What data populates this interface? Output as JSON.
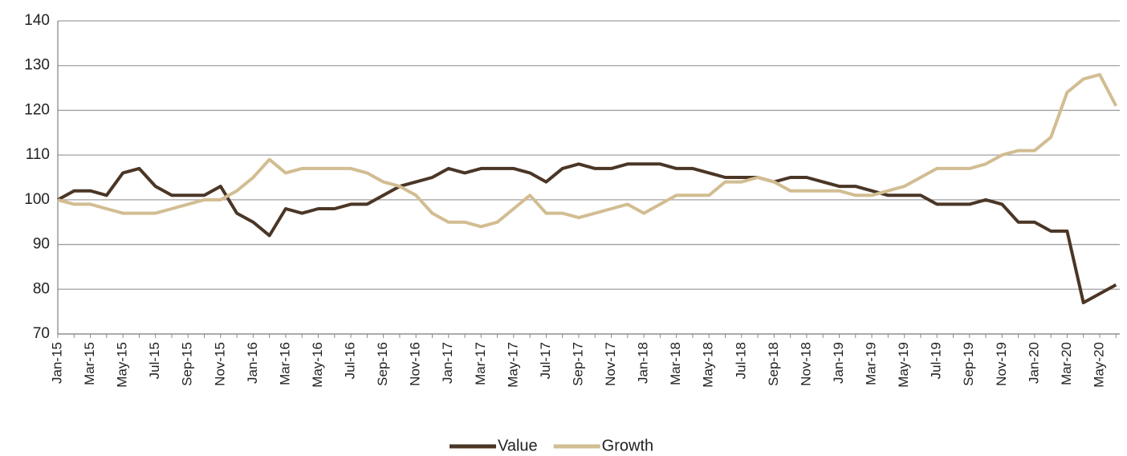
{
  "chart_data": {
    "type": "line",
    "categories": [
      "Jan-15",
      null,
      "Mar-15",
      null,
      "May-15",
      null,
      "Jul-15",
      null,
      "Sep-15",
      null,
      "Nov-15",
      null,
      "Jan-16",
      null,
      "Mar-16",
      null,
      "May-16",
      null,
      "Jul-16",
      null,
      "Sep-16",
      null,
      "Nov-16",
      null,
      "Jan-17",
      null,
      "Mar-17",
      null,
      "May-17",
      null,
      "Jul-17",
      null,
      "Sep-17",
      null,
      "Nov-17",
      null,
      "Jan-18",
      null,
      "Mar-18",
      null,
      "May-18",
      null,
      "Jul-18",
      null,
      "Sep-18",
      null,
      "Nov-18",
      null,
      "Jan-19",
      null,
      "Mar-19",
      null,
      "May-19",
      null,
      "Jul-19",
      null,
      "Sep-19",
      null,
      "Nov-19",
      null,
      "Jan-20",
      null,
      "Mar-20",
      null,
      "May-20",
      null
    ],
    "series": [
      {
        "name": "Value",
        "color": "#4b3626",
        "values": [
          100,
          102,
          102,
          101,
          106,
          107,
          103,
          101,
          101,
          101,
          103,
          97,
          95,
          92,
          98,
          97,
          98,
          98,
          99,
          99,
          101,
          103,
          104,
          105,
          107,
          106,
          107,
          107,
          107,
          106,
          104,
          107,
          108,
          107,
          107,
          108,
          108,
          108,
          107,
          107,
          106,
          105,
          105,
          105,
          104,
          105,
          105,
          104,
          103,
          103,
          102,
          101,
          101,
          101,
          99,
          99,
          99,
          100,
          99,
          95,
          95,
          93,
          93,
          77,
          79,
          81
        ]
      },
      {
        "name": "Growth",
        "color": "#d2bd92",
        "values": [
          100,
          99,
          99,
          98,
          97,
          97,
          97,
          98,
          99,
          100,
          100,
          102,
          105,
          109,
          106,
          107,
          107,
          107,
          107,
          106,
          104,
          103,
          101,
          97,
          95,
          95,
          94,
          95,
          98,
          101,
          97,
          97,
          96,
          97,
          98,
          99,
          97,
          99,
          101,
          101,
          101,
          104,
          104,
          105,
          104,
          102,
          102,
          102,
          102,
          101,
          101,
          102,
          103,
          105,
          107,
          107,
          107,
          108,
          110,
          111,
          111,
          114,
          124,
          127,
          128,
          121
        ]
      }
    ],
    "ylim": [
      70,
      140
    ],
    "yticks": [
      70,
      80,
      90,
      100,
      110,
      120,
      130,
      140
    ],
    "grid": true,
    "legend": "bottom"
  }
}
